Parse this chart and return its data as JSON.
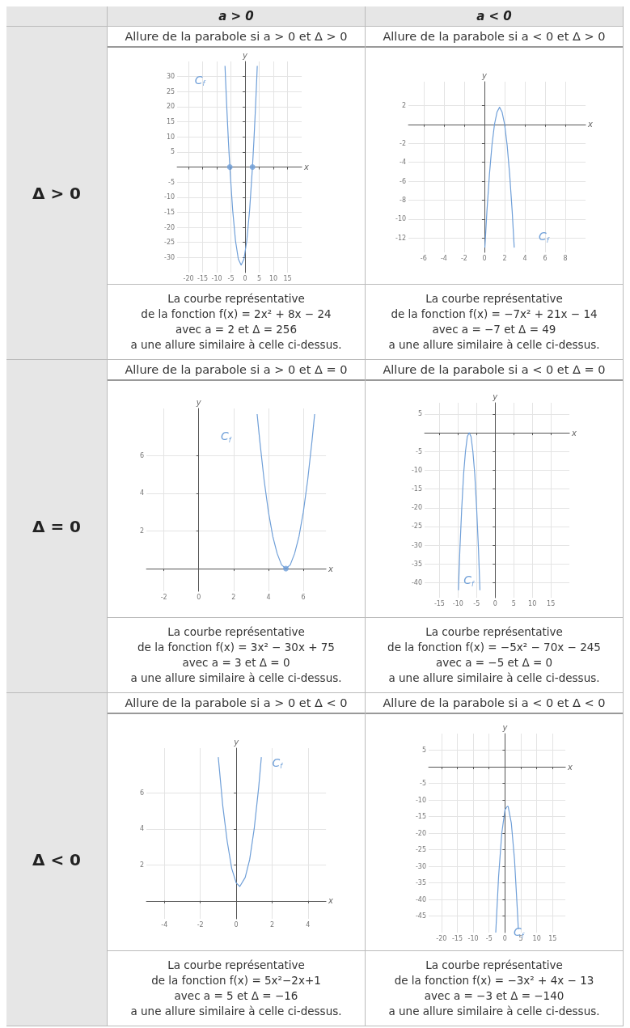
{
  "chart_data": [
    {
      "type": "line",
      "title": "Allure de la parabole si a > 0 et Δ > 0",
      "xlabel": "x",
      "ylabel": "y",
      "xlim": [
        -24,
        20
      ],
      "ylim": [
        -35,
        35
      ],
      "xticks": [
        -20,
        -15,
        -10,
        -5,
        0,
        5,
        10,
        15
      ],
      "yticks": [
        -30,
        -25,
        -20,
        -15,
        -10,
        -5,
        5,
        10,
        15,
        20,
        25,
        30
      ],
      "grid": true,
      "series": [
        {
          "name": "C$_{f}$",
          "color": "#6f9fd8",
          "x": [
            -7.1,
            -6.9,
            -6.4,
            -5.9,
            -5.4,
            -4.4,
            -3.4,
            -2.4,
            -1.4,
            -0.4,
            0.6,
            1.6,
            2.6,
            3.1,
            3.6,
            4.1,
            4.3
          ],
          "values": [
            33.5,
            28.9,
            18.3,
            8.6,
            0,
            -14.2,
            -24.4,
            -30.5,
            -32.5,
            -30.5,
            -24.4,
            -14.2,
            0,
            8.6,
            18.3,
            28.9,
            33.5
          ]
        },
        {
          "type": "scatter",
          "color": "#6f9fd8",
          "x": [
            -5.4,
            2.6
          ],
          "values": [
            0,
            0
          ]
        }
      ],
      "annotations": [
        "La courbe représentative",
        "de la fonction f(x) = 2x² + 8x − 24",
        "avec a = 2 et Δ = 256",
        "a une allure similaire à celle ci-dessus."
      ]
    },
    {
      "type": "line",
      "title": "Allure de la parabole si a < 0 et Δ > 0",
      "xlabel": "x",
      "ylabel": "y",
      "xlim": [
        -7.5,
        10
      ],
      "ylim": [
        -13.5,
        4.5
      ],
      "xticks": [
        -6,
        -4,
        -2,
        0,
        2,
        4,
        6,
        8
      ],
      "yticks": [
        -12,
        -10,
        -8,
        -6,
        -4,
        -2,
        2
      ],
      "grid": true,
      "series": [
        {
          "name": "C$_{f}$",
          "color": "#6f9fd8",
          "x": [
            0.05,
            0.25,
            0.5,
            0.75,
            1,
            1.25,
            1.5,
            1.75,
            2,
            2.25,
            2.5,
            2.75,
            2.95
          ],
          "values": [
            -13,
            -9.2,
            -5.3,
            -2.2,
            0,
            1.3,
            1.8,
            1.3,
            0,
            -2.2,
            -5.3,
            -9.2,
            -13
          ]
        }
      ],
      "annotations": [
        "La courbe représentative",
        "de la fonction f(x) = −7x² + 21x − 14",
        "avec a = −7 et Δ = 49",
        "a une allure similaire à celle ci-dessus."
      ]
    },
    {
      "type": "line",
      "title": "Allure de la parabole si a > 0 et Δ = 0",
      "xlabel": "x",
      "ylabel": "y",
      "xlim": [
        -3,
        7.3
      ],
      "ylim": [
        -1.2,
        8.5
      ],
      "xticks": [
        -2,
        0,
        2,
        4,
        6
      ],
      "yticks": [
        2,
        4,
        6
      ],
      "grid": true,
      "series": [
        {
          "name": "C$_{f}$",
          "color": "#6f9fd8",
          "x": [
            3.35,
            3.5,
            3.75,
            4,
            4.25,
            4.5,
            4.75,
            5,
            5.25,
            5.5,
            5.75,
            6,
            6.25,
            6.5,
            6.65
          ],
          "values": [
            8.2,
            6.8,
            4.7,
            3,
            1.7,
            0.8,
            0.2,
            0,
            0.2,
            0.8,
            1.7,
            3,
            4.7,
            6.8,
            8.2
          ]
        },
        {
          "type": "scatter",
          "color": "#6f9fd8",
          "x": [
            5
          ],
          "values": [
            0
          ]
        }
      ],
      "annotations": [
        "La courbe représentative",
        "de la fonction f(x) = 3x² − 30x + 75",
        "avec a = 3 et Δ = 0",
        "a une allure similaire à celle ci-dessus."
      ]
    },
    {
      "type": "line",
      "title": "Allure de la parabole si a < 0 et Δ = 0",
      "xlabel": "x",
      "ylabel": "y",
      "xlim": [
        -19,
        20
      ],
      "ylim": [
        -44,
        8
      ],
      "xticks": [
        -15,
        -10,
        -5,
        0,
        5,
        10,
        15
      ],
      "yticks": [
        -40,
        -35,
        -30,
        -25,
        -20,
        -15,
        -10,
        -5,
        5
      ],
      "grid": true,
      "series": [
        {
          "name": "C$_{f}$",
          "color": "#6f9fd8",
          "x": [
            -9.9,
            -9.5,
            -9,
            -8.5,
            -8,
            -7.5,
            -7,
            -6.5,
            -6,
            -5.5,
            -5,
            -4.5,
            -4.1
          ],
          "values": [
            -42,
            -31,
            -20,
            -11,
            -5,
            -1,
            0,
            -1,
            -5,
            -11,
            -20,
            -31,
            -42
          ]
        }
      ],
      "annotations": [
        "La courbe représentative",
        "de la fonction f(x) = −5x² − 70x − 245",
        "avec a = −5 et Δ = 0",
        "a une allure similaire à celle ci-dessus."
      ]
    },
    {
      "type": "line",
      "title": "Allure de la parabole si a > 0 et Δ < 0",
      "xlabel": "x",
      "ylabel": "y",
      "xlim": [
        -5,
        5
      ],
      "ylim": [
        -1,
        8.5
      ],
      "xticks": [
        -4,
        -2,
        0,
        2,
        4
      ],
      "yticks": [
        2,
        4,
        6
      ],
      "grid": true,
      "series": [
        {
          "name": "C$_{f}$",
          "color": "#6f9fd8",
          "x": [
            -1,
            -0.75,
            -0.5,
            -0.25,
            0,
            0.2,
            0.5,
            0.75,
            1,
            1.25,
            1.4
          ],
          "values": [
            8,
            5.3,
            3.3,
            1.8,
            1,
            0.8,
            1.3,
            2.3,
            4,
            6.3,
            8
          ]
        }
      ],
      "annotations": [
        "La courbe représentative",
        "de la fonction f(x) = 5x²−2x+1",
        "avec a = 5 et Δ = −16",
        "a une allure similaire à celle ci-dessus."
      ]
    },
    {
      "type": "line",
      "title": "Allure de la parabole si a < 0 et Δ < 0",
      "xlabel": "x",
      "ylabel": "y",
      "xlim": [
        -24,
        19
      ],
      "ylim": [
        -50,
        10
      ],
      "xticks": [
        -20,
        -15,
        -10,
        -5,
        0,
        5,
        10,
        15
      ],
      "yticks": [
        -45,
        -40,
        -35,
        -30,
        -25,
        -20,
        -15,
        -10,
        -5,
        5
      ],
      "grid": true,
      "series": [
        {
          "name": "C$_{f}$",
          "color": "#6f9fd8",
          "x": [
            -2.9,
            -2,
            -1,
            0,
            0.667,
            1,
            2,
            3,
            4,
            4.2
          ],
          "values": [
            -50,
            -33,
            -20,
            -13,
            -12,
            -12,
            -17,
            -28,
            -45,
            -49
          ]
        }
      ],
      "annotations": [
        "La courbe représentative",
        "de la fonction f(x) = −3x² + 4x − 13",
        "avec a = −3 et Δ = −140",
        "a une allure similaire à celle ci-dessus."
      ]
    },
    {
      "type": "other",
      "annotations": [
        "a > 0",
        "a < 0",
        "Δ > 0",
        "Δ = 0",
        "Δ < 0"
      ]
    }
  ]
}
